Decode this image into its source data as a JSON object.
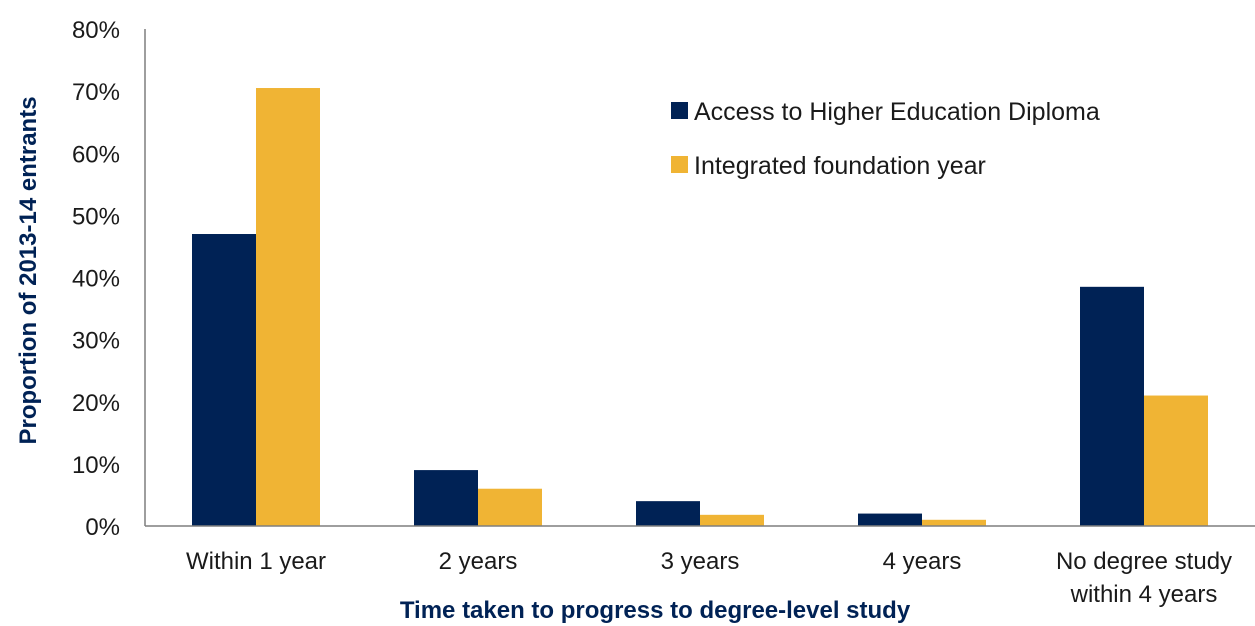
{
  "chart_data": {
    "type": "bar",
    "categories": [
      [
        "Within 1 year"
      ],
      [
        "2 years"
      ],
      [
        "3 years"
      ],
      [
        "4 years"
      ],
      [
        "No degree study",
        "within 4 years"
      ]
    ],
    "series": [
      {
        "name": "Access to Higher Education Diploma",
        "color": "#002255",
        "values": [
          47,
          9,
          4,
          2,
          38.5
        ]
      },
      {
        "name": "Integrated foundation year",
        "color": "#F0B434",
        "values": [
          70.5,
          6,
          1.8,
          1,
          21
        ]
      }
    ],
    "xlabel": "Time taken to progress to degree-level study",
    "ylabel": "Proportion of 2013-14 entrants",
    "ylim": [
      0,
      80
    ],
    "yticks": [
      0,
      10,
      20,
      30,
      40,
      50,
      60,
      70,
      80
    ],
    "ytick_suffix": "%",
    "grid": false,
    "legend_position": "top-right"
  }
}
